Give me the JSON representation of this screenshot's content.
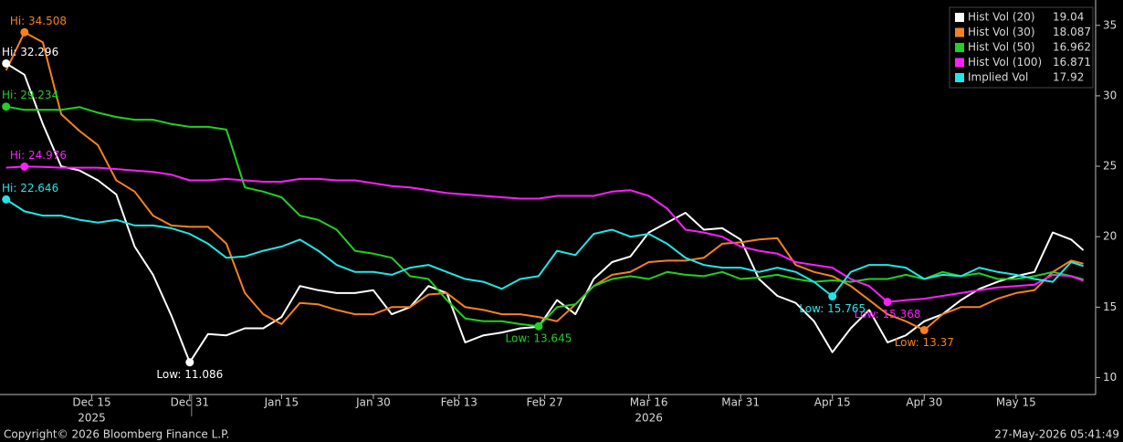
{
  "chart_data": {
    "type": "line",
    "x": [
      0,
      3,
      6,
      9,
      12,
      15,
      18,
      21,
      24,
      27,
      30,
      33,
      36,
      39,
      42,
      45,
      48,
      51,
      54,
      57,
      60,
      63,
      66,
      69,
      72,
      75,
      78,
      81,
      84,
      87,
      90,
      93,
      96,
      99,
      102,
      105,
      108,
      111,
      114,
      117,
      120,
      123,
      126,
      129,
      132,
      135,
      138,
      141,
      144,
      147,
      150,
      153,
      156,
      159,
      162,
      165,
      168,
      171,
      174,
      176
    ],
    "series": [
      {
        "name": "Hist Vol (20)",
        "color": "#ffffff",
        "values": [
          32.296,
          31.5,
          28,
          25,
          24.7,
          24,
          23,
          19.3,
          17.3,
          14.4,
          11.086,
          13.1,
          13,
          13.5,
          13.5,
          14.3,
          16.5,
          16.2,
          16.0,
          16.0,
          16.2,
          14.5,
          15.0,
          16.5,
          16.0,
          12.5,
          13.0,
          13.2,
          13.5,
          13.6,
          15.5,
          14.5,
          17.0,
          18.2,
          18.6,
          20.3,
          21.0,
          21.7,
          20.5,
          20.6,
          19.8,
          17.0,
          15.8,
          15.3,
          14.0,
          11.8,
          13.5,
          14.8,
          12.5,
          13.0,
          14.0,
          14.5,
          15.5,
          16.3,
          16.8,
          17.2,
          17.5,
          20.3,
          19.8,
          19.04
        ]
      },
      {
        "name": "Hist Vol (30)",
        "color": "#f5821f",
        "values": [
          31.8,
          34.508,
          33.8,
          28.7,
          27.5,
          26.5,
          24,
          23.2,
          21.5,
          20.8,
          20.7,
          20.7,
          19.5,
          16,
          14.5,
          13.8,
          15.3,
          15.2,
          14.8,
          14.5,
          14.5,
          15,
          15.0,
          15.9,
          16,
          15,
          14.8,
          14.5,
          14.5,
          14.3,
          14.0,
          15.2,
          16.5,
          17.3,
          17.5,
          18.2,
          18.3,
          18.3,
          18.5,
          19.5,
          19.6,
          19.8,
          19.9,
          18.0,
          17.5,
          17.2,
          16.5,
          15.5,
          14.5,
          14.0,
          13.37,
          14.5,
          15.0,
          15.0,
          15.6,
          16.0,
          16.2,
          17.5,
          18.3,
          18.087
        ]
      },
      {
        "name": "Hist Vol (50)",
        "color": "#22d022",
        "values": [
          29.234,
          29,
          29,
          29,
          29.2,
          28.8,
          28.5,
          28.3,
          28.3,
          28.0,
          27.8,
          27.8,
          27.6,
          23.5,
          23.2,
          22.8,
          21.5,
          21.2,
          20.5,
          19.0,
          18.8,
          18.5,
          17.2,
          17,
          15.5,
          14.2,
          14.0,
          14.0,
          13.8,
          13.645,
          15.0,
          15.2,
          16.5,
          17.0,
          17.2,
          17.0,
          17.5,
          17.3,
          17.2,
          17.5,
          17.0,
          17.1,
          17.3,
          17.0,
          16.8,
          16.9,
          16.8,
          17.0,
          17.0,
          17.3,
          17.0,
          17.5,
          17.2,
          17.4,
          17.0,
          17.0,
          17.2,
          17.5,
          17.2,
          16.962
        ]
      },
      {
        "name": "Hist Vol (100)",
        "color": "#ff1eff",
        "values": [
          24.9,
          24.976,
          24.95,
          24.9,
          24.9,
          24.9,
          24.8,
          24.7,
          24.6,
          24.4,
          24.0,
          24.0,
          24.1,
          24.0,
          23.9,
          23.9,
          24.1,
          24.1,
          24.0,
          24.0,
          23.8,
          23.6,
          23.5,
          23.3,
          23.1,
          23.0,
          22.9,
          22.8,
          22.7,
          22.7,
          22.9,
          22.9,
          22.9,
          23.2,
          23.3,
          22.9,
          22.0,
          20.5,
          20.3,
          20.0,
          19.3,
          19.0,
          18.8,
          18.2,
          18.0,
          17.8,
          17.0,
          16.5,
          15.368,
          15.5,
          15.6,
          15.8,
          16.0,
          16.2,
          16.4,
          16.5,
          16.6,
          17.3,
          17.2,
          16.871
        ]
      },
      {
        "name": "Implied Vol",
        "color": "#22e6e6",
        "values": [
          22.646,
          21.8,
          21.5,
          21.5,
          21.2,
          21.0,
          21.2,
          20.8,
          20.8,
          20.6,
          20.2,
          19.5,
          18.5,
          18.6,
          19.0,
          19.3,
          19.8,
          19.0,
          18.0,
          17.5,
          17.5,
          17.3,
          17.8,
          18.0,
          17.5,
          17.0,
          16.8,
          16.3,
          17.0,
          17.2,
          19.0,
          18.7,
          20.2,
          20.5,
          20.0,
          20.2,
          19.5,
          18.5,
          18.0,
          17.8,
          17.8,
          17.5,
          17.8,
          17.5,
          16.8,
          15.765,
          17.5,
          18.0,
          18.0,
          17.8,
          17.0,
          17.3,
          17.2,
          17.8,
          17.5,
          17.3,
          17.0,
          16.8,
          18.2,
          17.92
        ]
      }
    ],
    "annotations": [
      {
        "text": "Hi: 34.508",
        "x": 3,
        "y": 34.508,
        "color": "#f5821f"
      },
      {
        "text": "Hi: 32.296",
        "x": 0,
        "y": 32.296,
        "color": "#ffffff"
      },
      {
        "text": "Hi: 29.234",
        "x": 0,
        "y": 29.234,
        "color": "#22d022"
      },
      {
        "text": "Hi: 24.976",
        "x": 3,
        "y": 24.976,
        "color": "#ff1eff"
      },
      {
        "text": "Hi: 22.646",
        "x": 0,
        "y": 22.646,
        "color": "#22e6e6"
      },
      {
        "text": "Low: 11.086",
        "x": 30,
        "y": 11.086,
        "color": "#ffffff"
      },
      {
        "text": "Low: 13.645",
        "x": 87,
        "y": 13.645,
        "color": "#22d022"
      },
      {
        "text": "Low: 15.765",
        "x": 135,
        "y": 15.765,
        "color": "#22e6e6"
      },
      {
        "text": "Low: 15.368",
        "x": 144,
        "y": 15.368,
        "color": "#ff1eff"
      },
      {
        "text": "Low: 13.37",
        "x": 150,
        "y": 13.37,
        "color": "#f5821f"
      }
    ],
    "xlim": [
      -1,
      178
    ],
    "xticks": [
      {
        "value": 14,
        "label": "Dec 15"
      },
      {
        "value": 30,
        "label": "Dec 31"
      },
      {
        "value": 45,
        "label": "Jan 15"
      },
      {
        "value": 60,
        "label": "Jan 30"
      },
      {
        "value": 74,
        "label": "Feb 13"
      },
      {
        "value": 88,
        "label": "Feb 27"
      },
      {
        "value": 105,
        "label": "Mar 16"
      },
      {
        "value": 120,
        "label": "Mar 31"
      },
      {
        "value": 135,
        "label": "Apr 15"
      },
      {
        "value": 150,
        "label": "Apr 30"
      },
      {
        "value": 165,
        "label": "May 15"
      }
    ],
    "year_labels": [
      {
        "value": 14,
        "label": "2025"
      },
      {
        "value": 105,
        "label": "2026"
      }
    ],
    "ylim": [
      8.8,
      36.8
    ],
    "yticks": [
      10,
      15,
      20,
      25,
      30,
      35
    ],
    "grid": false,
    "legend": "top-right",
    "copyright": "Copyright© 2026 Bloomberg Finance L.P.",
    "timestamp": "27-May-2026 05:41:49"
  }
}
